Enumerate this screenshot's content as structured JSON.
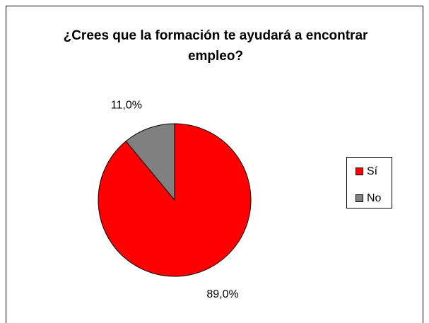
{
  "chart_data": {
    "type": "pie",
    "title": "¿Crees que la formación te ayudará a encontrar empleo?",
    "categories": [
      "Sí",
      "No"
    ],
    "values": [
      89,
      11
    ],
    "value_labels": [
      "89,0%",
      "11,0%"
    ],
    "colors": [
      "#ff0000",
      "#808080"
    ],
    "legend": "right"
  }
}
